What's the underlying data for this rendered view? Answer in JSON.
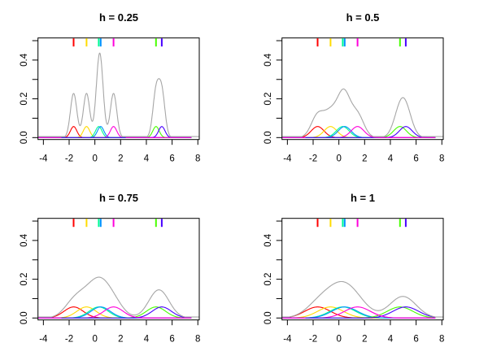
{
  "chart_data": {
    "type": "line",
    "description": "Kernel density estimation with Gaussian kernels at four bandwidths; gray curve is the density estimate, colored curves are the individual scaled kernels centered at each data point, colored rug ticks at top mark the data points.",
    "panels": [
      {
        "title": "h = 0.25",
        "h": 0.25,
        "main_peak": 0.42,
        "cluster2_peak": 0.3
      },
      {
        "title": "h = 0.5",
        "h": 0.5,
        "main_peak": 0.25,
        "cluster2_peak": 0.21
      },
      {
        "title": "h = 0.75",
        "h": 0.75,
        "main_peak": 0.21,
        "cluster2_peak": 0.14
      },
      {
        "title": "h = 1",
        "h": 1,
        "main_peak": 0.19,
        "cluster2_peak": 0.11
      }
    ],
    "data_points": [
      {
        "x": -1.65,
        "color": "#FF0000"
      },
      {
        "x": -0.65,
        "color": "#FFDB00"
      },
      {
        "x": 0.3,
        "color": "#00FF92"
      },
      {
        "x": 0.45,
        "color": "#0092FF"
      },
      {
        "x": 1.45,
        "color": "#FF00DB"
      },
      {
        "x": 4.75,
        "color": "#49FF00"
      },
      {
        "x": 5.2,
        "color": "#4900FF"
      }
    ],
    "n": 7,
    "kernel": "gaussian",
    "component_peak_height": 0.057,
    "colors": {
      "density": "#A6A6A6",
      "axis": "#000000",
      "background": "#FFFFFF"
    },
    "axes": {
      "xlim": [
        -4.42,
        8.11
      ],
      "ylim": [
        -0.01,
        0.514
      ],
      "x_ticks": [
        -4,
        -2,
        0,
        2,
        4,
        6,
        8
      ],
      "x_tick_labels": [
        "-4",
        "-2",
        "0",
        "2",
        "4",
        "6",
        "8"
      ],
      "y_ticks": [
        0,
        0.1,
        0.2,
        0.3,
        0.4,
        0.5
      ],
      "y_labeled_ticks": [
        0,
        0.2,
        0.4
      ],
      "y_tick_labels": [
        "0.0",
        "0.2",
        "0.4"
      ],
      "kernel_curve_xrange": [
        -4.4,
        7.5
      ]
    }
  }
}
